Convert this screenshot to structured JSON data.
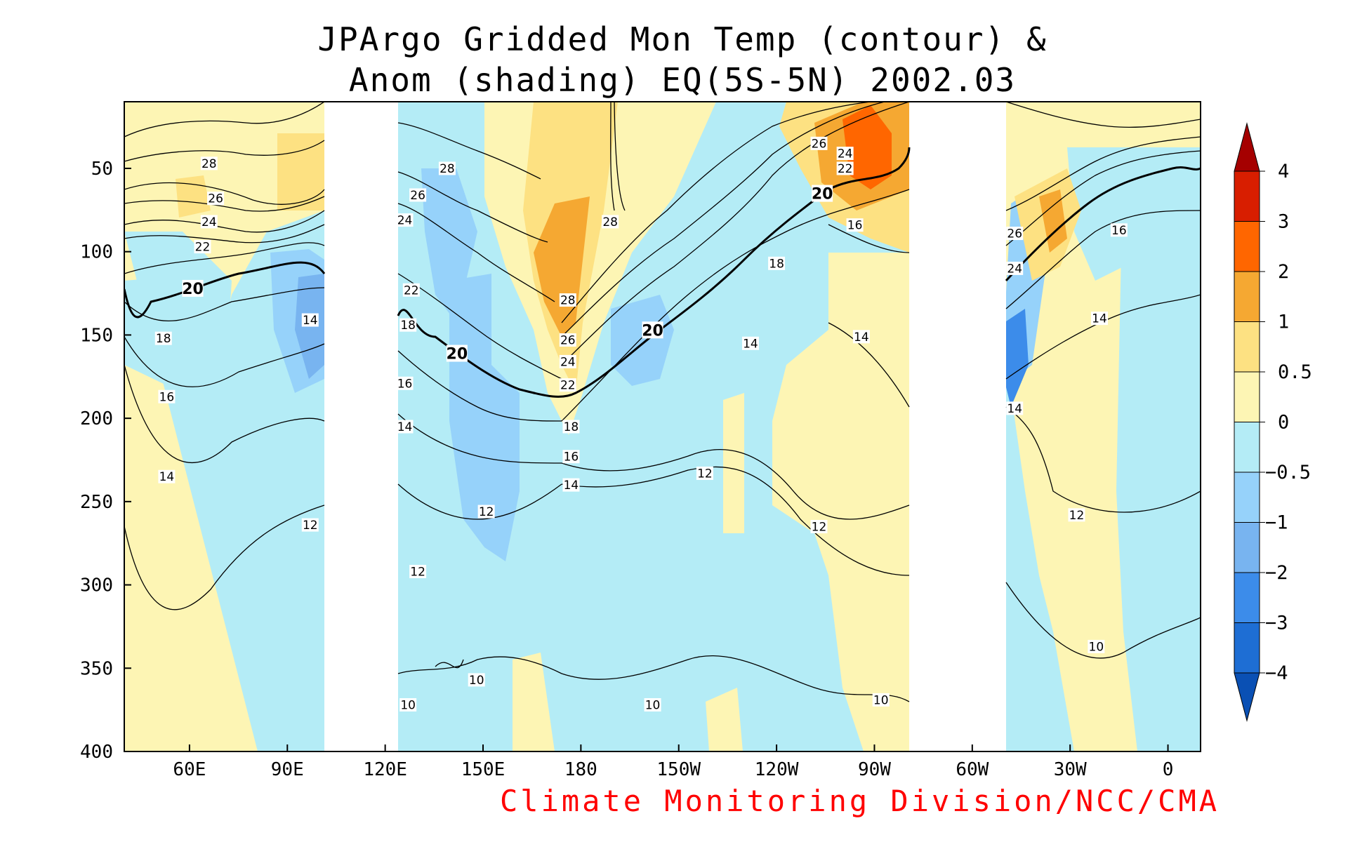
{
  "chart_data": {
    "type": "heatmap",
    "title_line1": "JPArgo Gridded Mon Temp (contour) &",
    "title_line2": "Anom (shading) EQ(5S-5N) 2002.03",
    "x_ticks": [
      "60E",
      "90E",
      "120E",
      "150E",
      "180",
      "150W",
      "120W",
      "90W",
      "60W",
      "30W",
      "0"
    ],
    "x_tick_lon": [
      60,
      90,
      120,
      150,
      180,
      210,
      240,
      270,
      300,
      330,
      360
    ],
    "xlim": [
      40,
      370
    ],
    "y_ticks": [
      "50",
      "100",
      "150",
      "200",
      "250",
      "300",
      "350",
      "400"
    ],
    "y_tick_values": [
      50,
      100,
      150,
      200,
      250,
      300,
      350,
      400
    ],
    "ylim": [
      10,
      400
    ],
    "y_reversed": true,
    "missing_data_ranges": [
      [
        102,
        125
      ],
      [
        280,
        309
      ]
    ],
    "colorbar": {
      "labels": [
        "4",
        "3",
        "2",
        "1",
        "0.5",
        "0",
        "-0.5",
        "-1",
        "-2",
        "-3",
        "-4"
      ],
      "colors": [
        "#a50000",
        "#d81e00",
        "#ff6600",
        "#f5a832",
        "#fde182",
        "#fdf5b4",
        "#b4ecf6",
        "#96d2fa",
        "#78b4f0",
        "#3c8cea",
        "#1e6ed4",
        "#0a50b4"
      ],
      "extend": "both"
    },
    "contour_levels": [
      10,
      12,
      14,
      16,
      18,
      20,
      22,
      24,
      26,
      28
    ],
    "highlight_contour": 20,
    "contour_labels": [
      {
        "text": "28",
        "lon": 66,
        "depth": 47
      },
      {
        "text": "26",
        "lon": 68,
        "depth": 68
      },
      {
        "text": "24",
        "lon": 66,
        "depth": 82
      },
      {
        "text": "22",
        "lon": 64,
        "depth": 97
      },
      {
        "text": "20",
        "lon": 61,
        "depth": 122
      },
      {
        "text": "18",
        "lon": 52,
        "depth": 152
      },
      {
        "text": "16",
        "lon": 53,
        "depth": 187
      },
      {
        "text": "14",
        "lon": 53,
        "depth": 235
      },
      {
        "text": "14",
        "lon": 97,
        "depth": 141
      },
      {
        "text": "12",
        "lon": 97,
        "depth": 264
      },
      {
        "text": "28",
        "lon": 139,
        "depth": 50
      },
      {
        "text": "26",
        "lon": 130,
        "depth": 66
      },
      {
        "text": "24",
        "lon": 126,
        "depth": 81
      },
      {
        "text": "22",
        "lon": 128,
        "depth": 123
      },
      {
        "text": "18",
        "lon": 127,
        "depth": 144
      },
      {
        "text": "20",
        "lon": 142,
        "depth": 161
      },
      {
        "text": "16",
        "lon": 126,
        "depth": 179
      },
      {
        "text": "14",
        "lon": 126,
        "depth": 205
      },
      {
        "text": "12",
        "lon": 130,
        "depth": 292
      },
      {
        "text": "10",
        "lon": 127,
        "depth": 372
      },
      {
        "text": "10",
        "lon": 148,
        "depth": 357
      },
      {
        "text": "12",
        "lon": 151,
        "depth": 256
      },
      {
        "text": "28",
        "lon": 176,
        "depth": 129
      },
      {
        "text": "26",
        "lon": 176,
        "depth": 153
      },
      {
        "text": "24",
        "lon": 176,
        "depth": 166
      },
      {
        "text": "22",
        "lon": 176,
        "depth": 180
      },
      {
        "text": "18",
        "lon": 177,
        "depth": 205
      },
      {
        "text": "16",
        "lon": 177,
        "depth": 223
      },
      {
        "text": "14",
        "lon": 177,
        "depth": 240
      },
      {
        "text": "28",
        "lon": 189,
        "depth": 82
      },
      {
        "text": "20",
        "lon": 202,
        "depth": 147
      },
      {
        "text": "12",
        "lon": 218,
        "depth": 233
      },
      {
        "text": "10",
        "lon": 202,
        "depth": 372
      },
      {
        "text": "14",
        "lon": 232,
        "depth": 155
      },
      {
        "text": "18",
        "lon": 240,
        "depth": 107
      },
      {
        "text": "20",
        "lon": 254,
        "depth": 65
      },
      {
        "text": "26",
        "lon": 253,
        "depth": 35
      },
      {
        "text": "24",
        "lon": 261,
        "depth": 41
      },
      {
        "text": "22",
        "lon": 261,
        "depth": 50
      },
      {
        "text": "16",
        "lon": 264,
        "depth": 84
      },
      {
        "text": "14",
        "lon": 266,
        "depth": 151
      },
      {
        "text": "12",
        "lon": 253,
        "depth": 265
      },
      {
        "text": "10",
        "lon": 272,
        "depth": 369
      },
      {
        "text": "26",
        "lon": 313,
        "depth": 89
      },
      {
        "text": "24",
        "lon": 313,
        "depth": 110
      },
      {
        "text": "14",
        "lon": 313,
        "depth": 194
      },
      {
        "text": "16",
        "lon": 345,
        "depth": 87
      },
      {
        "text": "14",
        "lon": 339,
        "depth": 140
      },
      {
        "text": "12",
        "lon": 332,
        "depth": 258
      },
      {
        "text": "10",
        "lon": 338,
        "depth": 337
      }
    ]
  },
  "credit": "Climate Monitoring Division/NCC/CMA"
}
